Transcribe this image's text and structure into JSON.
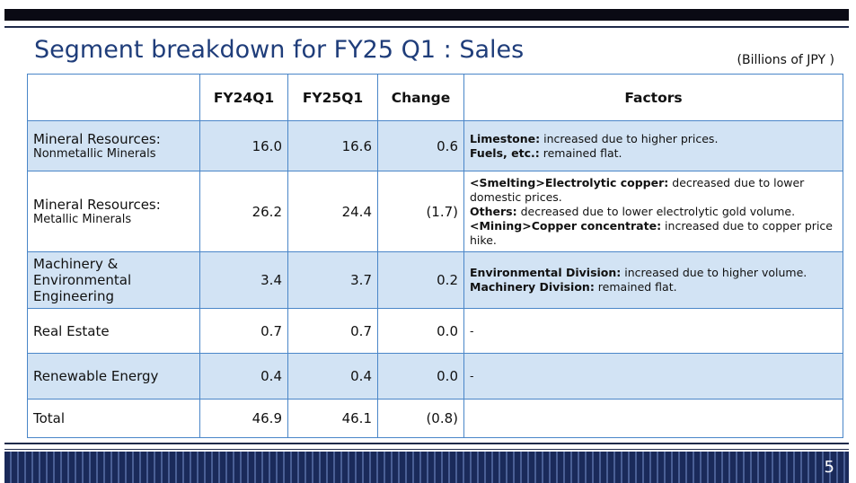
{
  "header": {
    "title": "Segment breakdown for FY25 Q1 : Sales",
    "unit": "(Billions of JPY )"
  },
  "table": {
    "columns": [
      "",
      "FY24Q1",
      "FY25Q1",
      "Change",
      "Factors"
    ],
    "rows": [
      {
        "segment": "Mineral Resources:",
        "sub": "Nonmetallic Minerals",
        "fy24q1": "16.0",
        "fy25q1": "16.6",
        "change": "0.6",
        "factors": [
          {
            "label": "Limestone:",
            "text": "increased due to higher prices."
          },
          {
            "label": "Fuels, etc.:",
            "text": "remained flat."
          }
        ]
      },
      {
        "segment": "Mineral Resources:",
        "sub": "Metallic Minerals",
        "fy24q1": "26.2",
        "fy25q1": "24.4",
        "change": "(1.7)",
        "factors": [
          {
            "label": "<Smelting>Electrolytic copper:",
            "text": "decreased due to lower domestic prices."
          },
          {
            "label": "Others:",
            "text": "decreased due to lower electrolytic gold volume."
          },
          {
            "label": "<Mining>Copper concentrate:",
            "text": "increased due to copper price hike."
          }
        ]
      },
      {
        "segment": "Machinery & Environmental Engineering",
        "fy24q1": "3.4",
        "fy25q1": "3.7",
        "change": "0.2",
        "factors": [
          {
            "label": "Environmental Division:",
            "text": "increased due to higher volume."
          },
          {
            "label": "Machinery Division:",
            "text": "remained flat."
          }
        ]
      },
      {
        "segment": "Real Estate",
        "fy24q1": "0.7",
        "fy25q1": "0.7",
        "change": "0.0",
        "factors": [
          {
            "text": "-"
          }
        ]
      },
      {
        "segment": "Renewable Energy",
        "fy24q1": "0.4",
        "fy25q1": "0.4",
        "change": "0.0",
        "factors": [
          {
            "text": "-"
          }
        ]
      },
      {
        "segment": "Total",
        "fy24q1": "46.9",
        "fy25q1": "46.1",
        "change": "(0.8)",
        "factors": []
      }
    ]
  },
  "footer": {
    "page": "5"
  }
}
